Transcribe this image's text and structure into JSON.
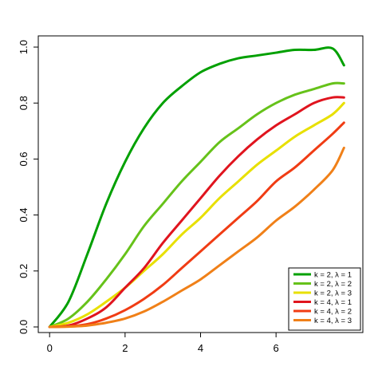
{
  "chart_data": {
    "type": "line",
    "title": "",
    "xlabel": "",
    "ylabel": "",
    "xlim": [
      -0.3,
      8.3
    ],
    "ylim": [
      -0.02,
      1.04
    ],
    "xticks": [
      0,
      2,
      4,
      6
    ],
    "xtick_labels": [
      "0",
      "2",
      "4",
      "6"
    ],
    "yticks": [
      0,
      0.2,
      0.4,
      0.6,
      0.8,
      1.0
    ],
    "ytick_labels": [
      "0.0",
      "0.2",
      "0.4",
      "0.6",
      "0.8",
      "1.0"
    ],
    "grid": false,
    "legend_position": "bottom-right",
    "x": [
      0,
      0.5,
      1,
      1.5,
      2,
      2.5,
      3,
      3.5,
      4,
      4.5,
      5,
      5.5,
      6,
      6.5,
      7,
      7.5,
      7.8
    ],
    "series": [
      {
        "name": "k = 2, λ = 1",
        "color": "#00a000",
        "values": [
          0.0,
          0.09,
          0.26,
          0.44,
          0.59,
          0.71,
          0.8,
          0.86,
          0.91,
          0.94,
          0.96,
          0.97,
          0.98,
          0.99,
          0.99,
          0.995,
          0.935
        ]
      },
      {
        "name": "k = 2, λ = 2",
        "color": "#66c21a",
        "values": [
          0.0,
          0.03,
          0.09,
          0.17,
          0.26,
          0.36,
          0.44,
          0.52,
          0.59,
          0.66,
          0.71,
          0.76,
          0.8,
          0.83,
          0.85,
          0.87,
          0.87
        ]
      },
      {
        "name": "k = 2, λ = 3",
        "color": "#e8e000",
        "values": [
          0.0,
          0.015,
          0.045,
          0.09,
          0.14,
          0.2,
          0.26,
          0.33,
          0.39,
          0.46,
          0.52,
          0.58,
          0.63,
          0.68,
          0.72,
          0.76,
          0.8
        ]
      },
      {
        "name": "k = 4, λ = 1",
        "color": "#e0141e",
        "values": [
          0.0,
          0.005,
          0.03,
          0.07,
          0.14,
          0.21,
          0.3,
          0.38,
          0.46,
          0.54,
          0.61,
          0.67,
          0.72,
          0.76,
          0.8,
          0.82,
          0.82
        ]
      },
      {
        "name": "k = 4, λ = 2",
        "color": "#f03c14",
        "values": [
          0.0,
          0.002,
          0.01,
          0.03,
          0.06,
          0.1,
          0.15,
          0.21,
          0.27,
          0.33,
          0.39,
          0.45,
          0.52,
          0.57,
          0.63,
          0.69,
          0.73
        ]
      },
      {
        "name": "k = 4, λ = 3",
        "color": "#f08018",
        "values": [
          0.0,
          0.001,
          0.005,
          0.015,
          0.03,
          0.055,
          0.09,
          0.13,
          0.17,
          0.22,
          0.27,
          0.32,
          0.38,
          0.43,
          0.49,
          0.56,
          0.64
        ]
      }
    ]
  }
}
